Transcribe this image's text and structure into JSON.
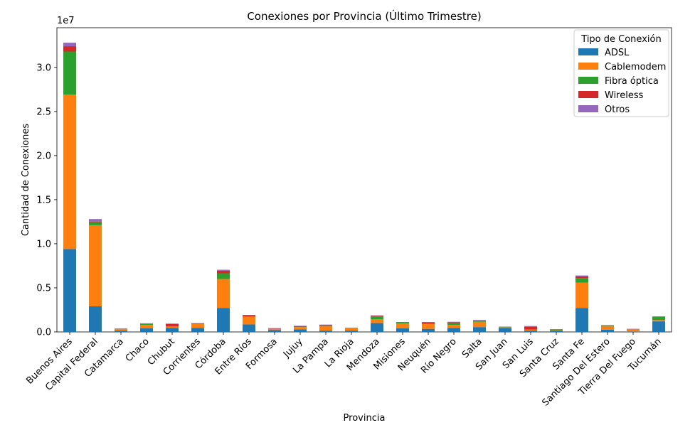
{
  "chart_data": {
    "type": "bar",
    "stacked": true,
    "title": "Conexiones por Provincia (Último Trimestre)",
    "xlabel": "Provincia",
    "ylabel": "Cantidad de Conexiones",
    "offset_text": "1e7",
    "ylim": [
      0,
      34500000
    ],
    "yticks": [
      0,
      5000000,
      10000000,
      15000000,
      20000000,
      25000000,
      30000000
    ],
    "ytick_labels": [
      "0.0",
      "0.5",
      "1.0",
      "1.5",
      "2.0",
      "2.5",
      "3.0"
    ],
    "legend": {
      "title": "Tipo de Conexión",
      "position": "upper right"
    },
    "categories": [
      "Buenos Aires",
      "Capital Federal",
      "Catamarca",
      "Chaco",
      "Chubut",
      "Corrientes",
      "Córdoba",
      "Entre Ríos",
      "Formosa",
      "Jujuy",
      "La Pampa",
      "La Rioja",
      "Mendoza",
      "Misiones",
      "Neuquén",
      "Río Negro",
      "Salta",
      "San Juan",
      "San Luis",
      "Santa Cruz",
      "Santa Fe",
      "Santiago Del Estero",
      "Tierra Del Fuego",
      "Tucumán"
    ],
    "series": [
      {
        "name": "ADSL",
        "color": "#1f77b4",
        "values": [
          9400000,
          2900000,
          150000,
          400000,
          450000,
          450000,
          2700000,
          850000,
          200000,
          300000,
          150000,
          150000,
          1000000,
          400000,
          350000,
          450000,
          550000,
          450000,
          150000,
          150000,
          2700000,
          250000,
          50000,
          1200000
        ]
      },
      {
        "name": "Cablemodem",
        "color": "#ff7f0e",
        "values": [
          17500000,
          9200000,
          150000,
          400000,
          150000,
          450000,
          3300000,
          850000,
          100000,
          250000,
          500000,
          250000,
          450000,
          550000,
          550000,
          350000,
          600000,
          50000,
          100000,
          50000,
          2900000,
          400000,
          250000,
          150000
        ]
      },
      {
        "name": "Fibra óptica",
        "color": "#2ca02c",
        "values": [
          4900000,
          350000,
          50000,
          100000,
          50000,
          30000,
          650000,
          50000,
          30000,
          50000,
          30000,
          30000,
          300000,
          100000,
          30000,
          200000,
          100000,
          50000,
          20000,
          80000,
          500000,
          50000,
          20000,
          350000
        ]
      },
      {
        "name": "Wireless",
        "color": "#d62728",
        "values": [
          600000,
          50000,
          20000,
          50000,
          250000,
          50000,
          300000,
          150000,
          50000,
          50000,
          100000,
          30000,
          80000,
          50000,
          150000,
          100000,
          50000,
          30000,
          300000,
          20000,
          200000,
          50000,
          20000,
          30000
        ]
      },
      {
        "name": "Otros",
        "color": "#9467bd",
        "values": [
          400000,
          300000,
          20000,
          30000,
          50000,
          20000,
          100000,
          30000,
          50000,
          50000,
          50000,
          20000,
          50000,
          30000,
          50000,
          50000,
          50000,
          30000,
          100000,
          20000,
          100000,
          30000,
          20000,
          30000
        ]
      }
    ]
  }
}
